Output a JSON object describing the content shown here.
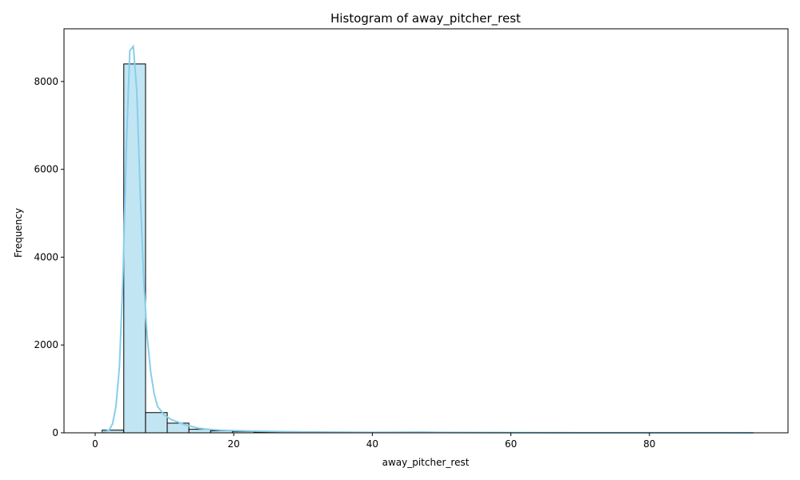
{
  "chart_data": {
    "type": "bar",
    "title": "Histogram of away_pitcher_rest",
    "xlabel": "away_pitcher_rest",
    "ylabel": "Frequency",
    "xlim": [
      -4.5,
      100
    ],
    "ylim": [
      0,
      9200
    ],
    "xticks": [
      0,
      20,
      40,
      60,
      80
    ],
    "yticks": [
      0,
      2000,
      4000,
      6000,
      8000
    ],
    "bins": {
      "edges": [
        1.0,
        4.13,
        7.27,
        10.4,
        13.53,
        16.67,
        19.8,
        22.93,
        26.07,
        29.2,
        32.33,
        35.47,
        38.6,
        41.73,
        44.87,
        48.0,
        51.13,
        54.27,
        57.4,
        60.53,
        63.67,
        66.8,
        69.93,
        73.07,
        76.2,
        79.33,
        82.47,
        85.6,
        88.73,
        91.87,
        95.0
      ],
      "counts": [
        60,
        8400,
        460,
        220,
        80,
        45,
        30,
        20,
        15,
        10,
        8,
        6,
        5,
        5,
        10,
        3,
        2,
        2,
        2,
        2,
        1,
        1,
        1,
        1,
        1,
        1,
        1,
        1,
        1,
        1
      ]
    },
    "kde": {
      "x": [
        1.0,
        2.0,
        2.5,
        3.0,
        3.5,
        4.0,
        4.5,
        5.0,
        5.5,
        6.0,
        6.5,
        7.0,
        7.5,
        8.0,
        8.5,
        9.0,
        10.0,
        11.0,
        12.0,
        13.0,
        15.0,
        18.0,
        22.0,
        26.0,
        30.0,
        40.0,
        47.0,
        50.0,
        60.0,
        70.0,
        80.0,
        90.0,
        95.0
      ],
      "y": [
        5,
        60,
        200,
        600,
        1500,
        3500,
        6500,
        8700,
        8800,
        7800,
        5500,
        3500,
        2200,
        1400,
        900,
        600,
        400,
        300,
        240,
        180,
        100,
        60,
        40,
        30,
        20,
        10,
        15,
        8,
        4,
        3,
        2,
        2,
        1
      ]
    },
    "colors": {
      "bar_fill": "#c2e5f3",
      "bar_edge": "#000000",
      "kde_line": "#87ceeb"
    },
    "grid": false,
    "legend": "none"
  }
}
